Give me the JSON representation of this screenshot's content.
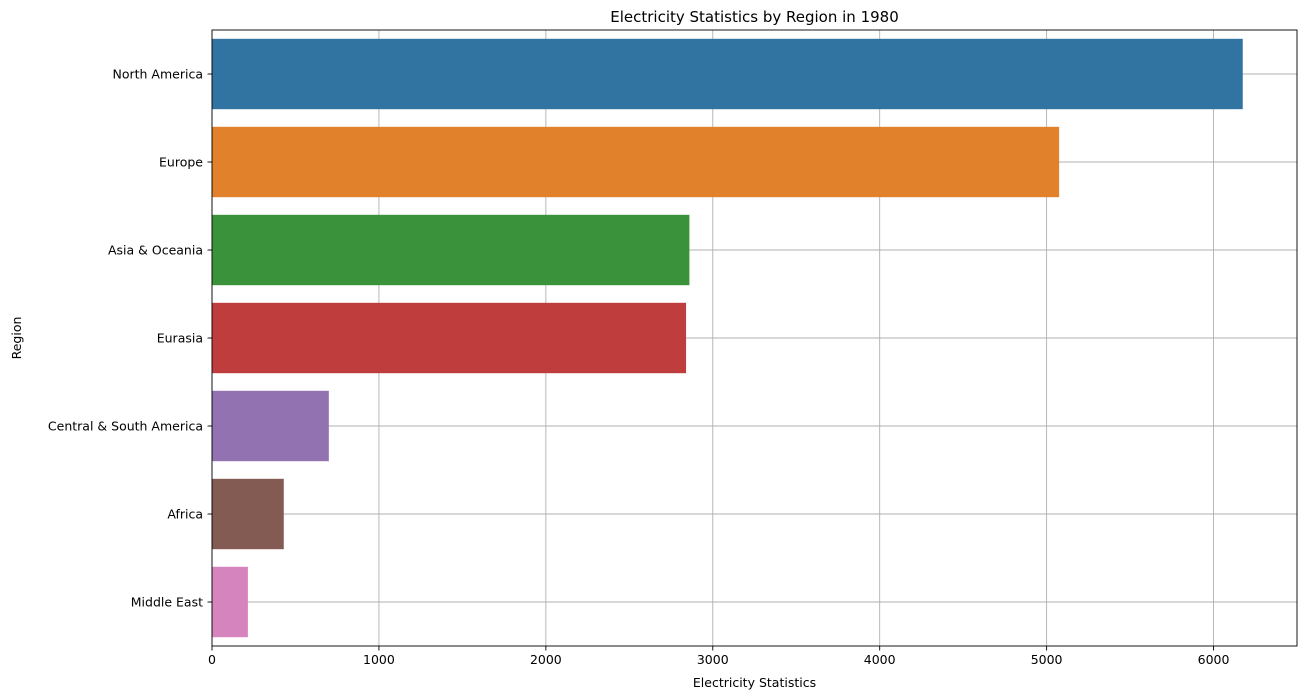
{
  "chart_data": {
    "type": "bar",
    "orientation": "horizontal",
    "title": "Electricity Statistics by Region in 1980",
    "xlabel": "Electricity Statistics",
    "ylabel": "Region",
    "categories": [
      "North America",
      "Europe",
      "Asia & Oceania",
      "Eurasia",
      "Central & South America",
      "Africa",
      "Middle East"
    ],
    "values": [
      6175,
      5075,
      2860,
      2840,
      700,
      430,
      215
    ],
    "colors": [
      "#3274a1",
      "#e1812c",
      "#3a923a",
      "#c03d3e",
      "#9372b2",
      "#845b53",
      "#d684bd"
    ],
    "xlim": [
      0,
      6500
    ],
    "xticks": [
      0,
      1000,
      2000,
      3000,
      4000,
      5000,
      6000
    ],
    "xtick_labels": [
      "0",
      "1000",
      "2000",
      "3000",
      "4000",
      "5000",
      "6000"
    ],
    "grid": true,
    "legend": "none"
  }
}
